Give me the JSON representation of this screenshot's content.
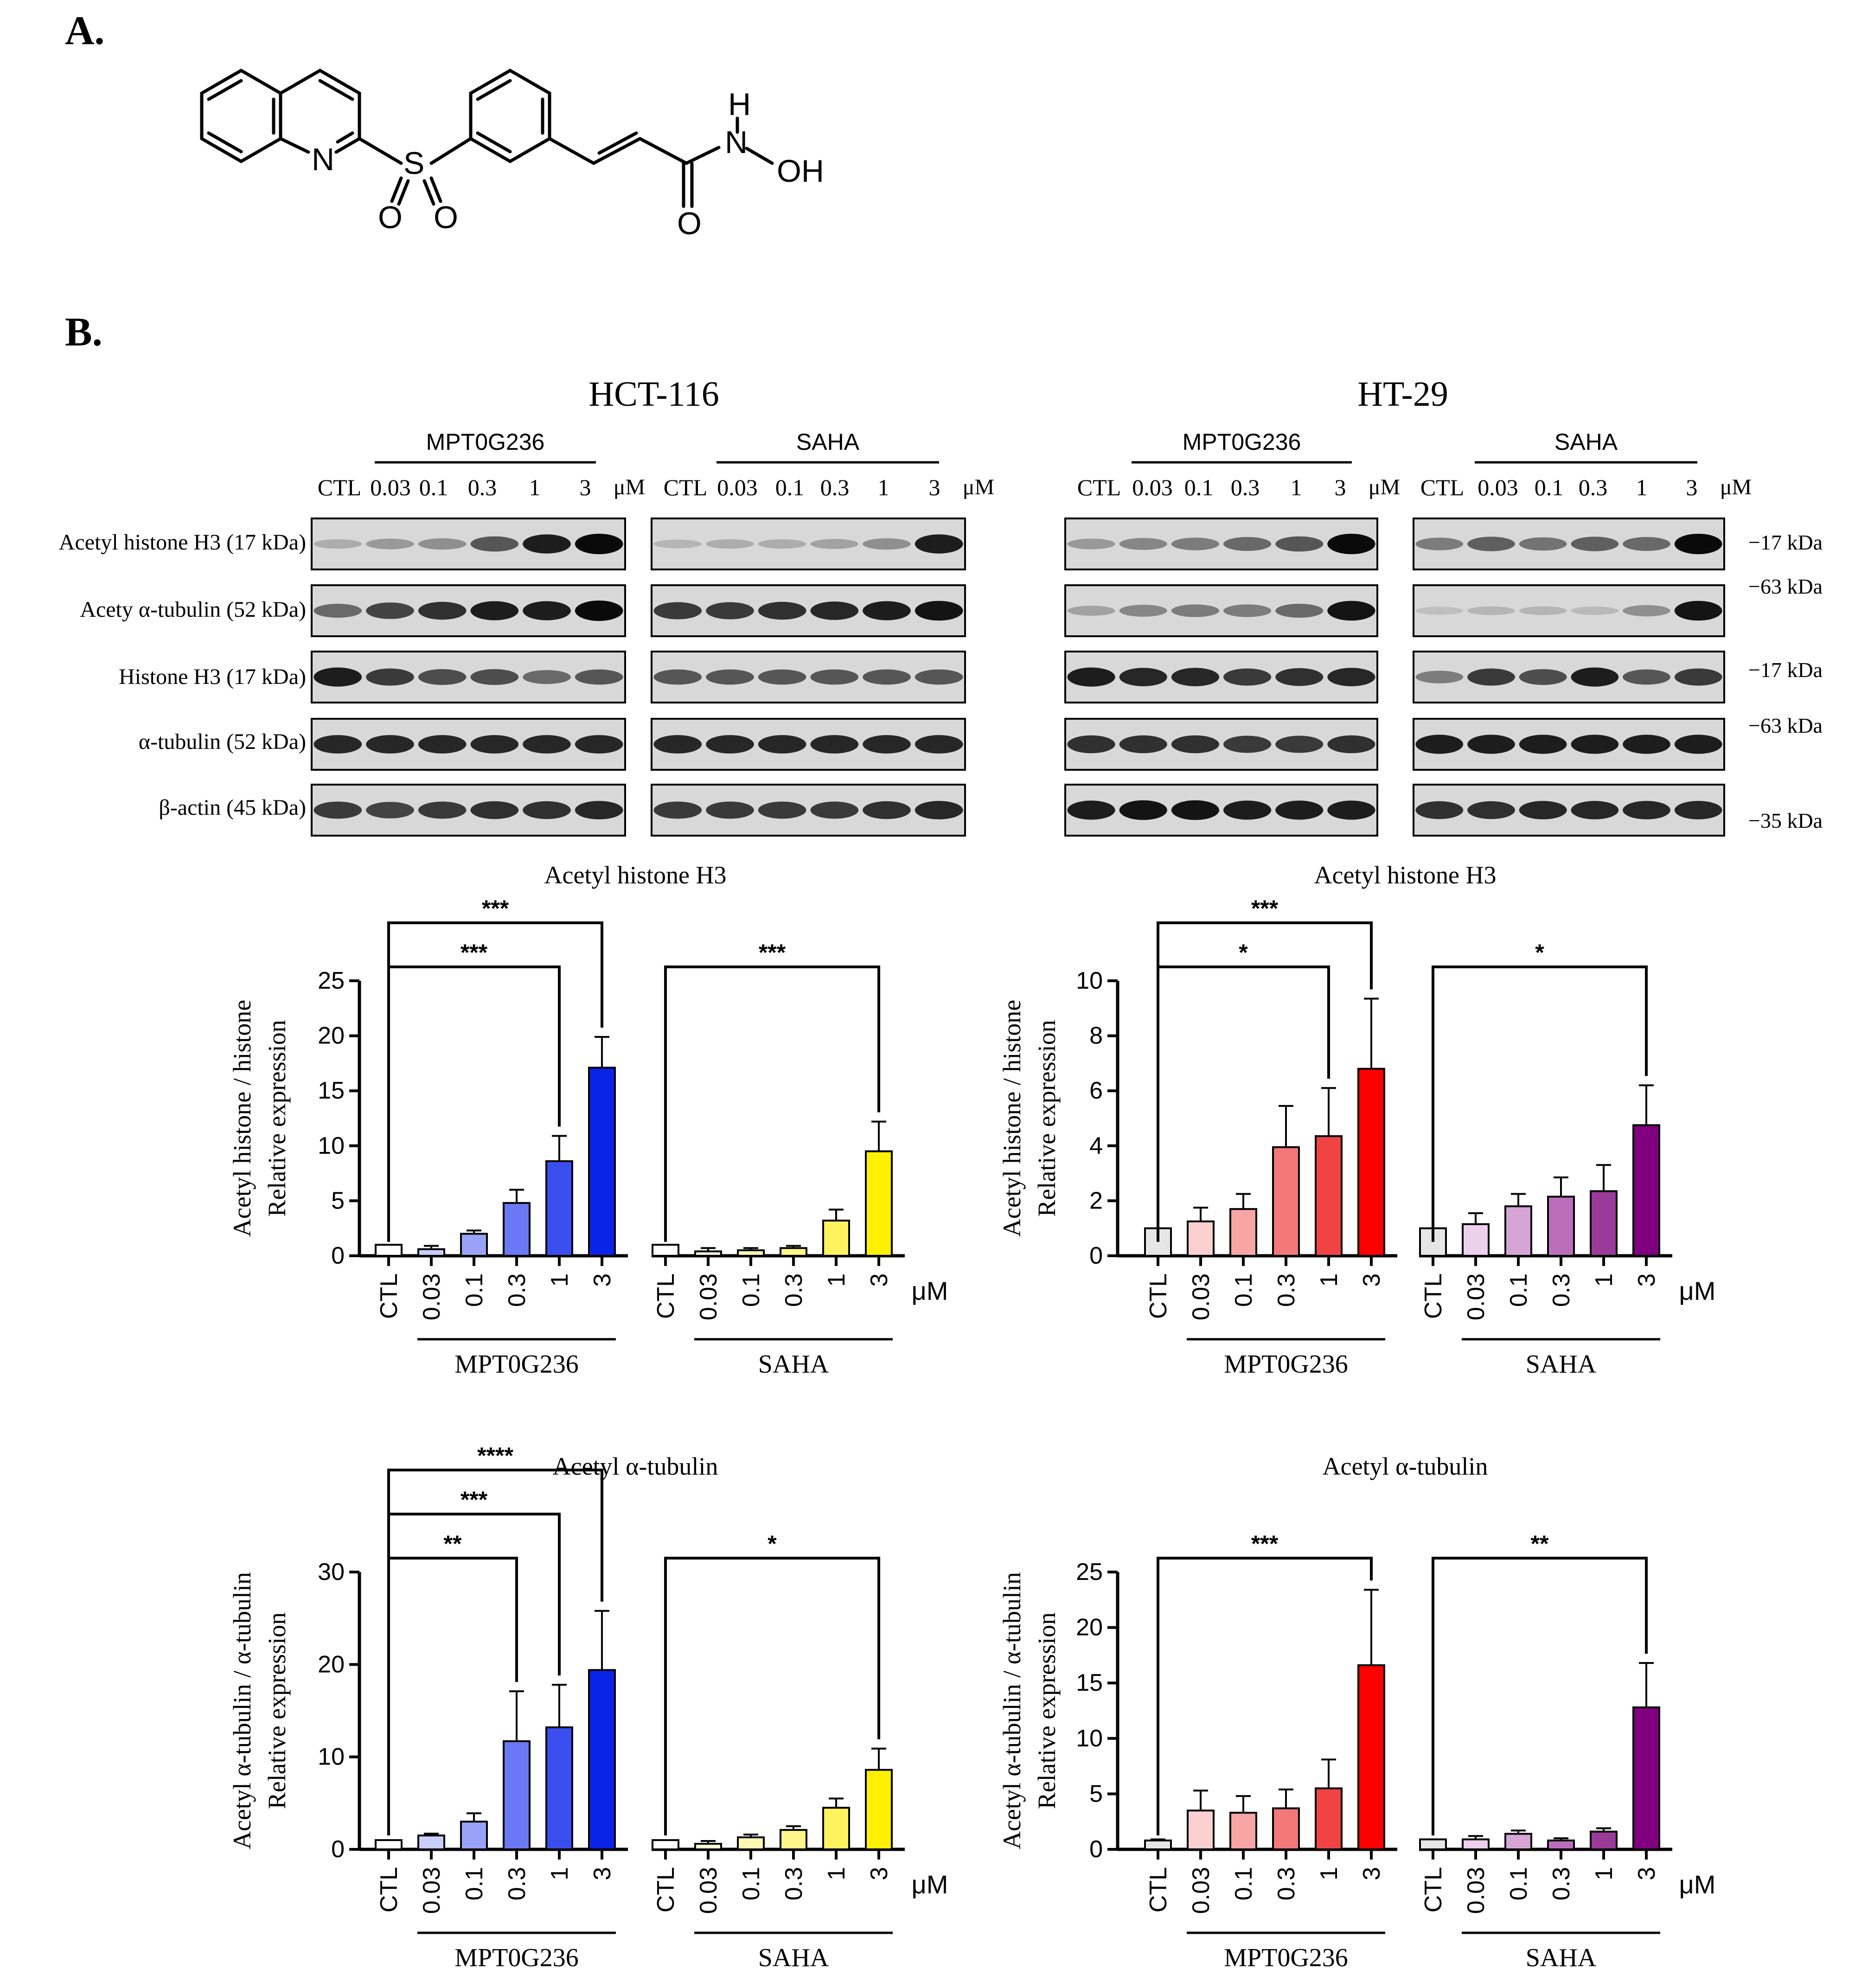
{
  "panel_a": {
    "label": "A.",
    "atoms": {
      "N": "N",
      "S": "S",
      "O1": "O",
      "O2": "O",
      "O3": "O",
      "H": "H",
      "NH": "N",
      "OH": "OH"
    }
  },
  "panel_b": {
    "label": "B.",
    "cell_lines": [
      "HCT-116",
      "HT-29"
    ],
    "groups": [
      "MPT0G236",
      "SAHA"
    ],
    "lanes": [
      "CTL",
      "0.03",
      "0.1",
      "0.3",
      "1",
      "3"
    ],
    "unit": "μM",
    "blot_rows": [
      "Acetyl histone H3 (17 kDa)",
      "Acety α-tubulin (52 kDa)",
      "Histone H3 (17 kDa)",
      "α-tubulin (52 kDa)",
      "β-actin (45 kDa)"
    ],
    "markers": [
      "−17 kDa",
      "−63 kDa",
      "−17 kDa",
      "−63 kDa",
      "−35 kDa"
    ]
  },
  "chart_data": [
    {
      "type": "bar",
      "title": "Acetyl histone H3",
      "cell_line": "HCT-116",
      "ylabel": [
        "Acetyl histone / histone",
        "Relative expression"
      ],
      "ylim": [
        0,
        25
      ],
      "yticks": [
        0,
        5,
        10,
        15,
        20,
        25
      ],
      "categories": [
        "CTL",
        "0.03",
        "0.1",
        "0.3",
        "1",
        "3"
      ],
      "unit": "μM",
      "series": [
        {
          "name": "MPT0G236",
          "values": [
            1,
            0.6,
            2.0,
            4.8,
            8.6,
            17.1
          ],
          "errors": [
            0,
            0.3,
            0.3,
            1.2,
            2.3,
            2.8
          ],
          "colors": [
            "#ffffff",
            "#c9cdfa",
            "#9aa2f7",
            "#6b78f4",
            "#3a4ef0",
            "#0a23e8"
          ]
        },
        {
          "name": "SAHA",
          "values": [
            1,
            0.4,
            0.5,
            0.7,
            3.2,
            9.5
          ],
          "errors": [
            0,
            0.3,
            0.2,
            0.2,
            1.0,
            2.7
          ],
          "colors": [
            "#ffffff",
            "#fffbd8",
            "#fff8b2",
            "#fff58a",
            "#fff25f",
            "#ffef00"
          ]
        }
      ],
      "significance": [
        {
          "group": 0,
          "to": 4,
          "label": "***"
        },
        {
          "group": 0,
          "to": 5,
          "label": "***"
        },
        {
          "group": 1,
          "to": 5,
          "label": "***"
        }
      ]
    },
    {
      "type": "bar",
      "title": "Acetyl histone H3",
      "cell_line": "HT-29",
      "ylabel": [
        "Acetyl histone / histone",
        "Relative expression"
      ],
      "ylim": [
        0,
        10
      ],
      "yticks": [
        0,
        2,
        4,
        6,
        8,
        10
      ],
      "categories": [
        "CTL",
        "0.03",
        "0.1",
        "0.3",
        "1",
        "3"
      ],
      "unit": "μM",
      "series": [
        {
          "name": "MPT0G236",
          "values": [
            1,
            1.25,
            1.7,
            3.95,
            4.35,
            6.8
          ],
          "errors": [
            0,
            0.5,
            0.55,
            1.5,
            1.75,
            2.55
          ],
          "colors": [
            "#e6e6e6",
            "#fbd0d0",
            "#f7a5a5",
            "#f37878",
            "#f04343",
            "#ff0000"
          ]
        },
        {
          "name": "SAHA",
          "values": [
            1,
            1.15,
            1.8,
            2.15,
            2.35,
            4.75
          ],
          "errors": [
            0,
            0.4,
            0.45,
            0.7,
            0.95,
            1.45
          ],
          "colors": [
            "#e6e6e6",
            "#ecd0ec",
            "#d6a5d6",
            "#bb6fbb",
            "#9a3b9a",
            "#800080"
          ]
        }
      ],
      "significance": [
        {
          "group": 0,
          "to": 4,
          "label": "*"
        },
        {
          "group": 0,
          "to": 5,
          "label": "***"
        },
        {
          "group": 1,
          "to": 5,
          "label": "*"
        }
      ]
    },
    {
      "type": "bar",
      "title": "Acetyl α-tubulin",
      "cell_line": "HCT-116",
      "ylabel": [
        "Acetyl α-tubulin / α-tubulin",
        "Relative expression"
      ],
      "ylim": [
        0,
        30
      ],
      "yticks": [
        0,
        10,
        20,
        30
      ],
      "categories": [
        "CTL",
        "0.03",
        "0.1",
        "0.3",
        "1",
        "3"
      ],
      "unit": "μM",
      "series": [
        {
          "name": "MPT0G236",
          "values": [
            1,
            1.5,
            3.0,
            11.7,
            13.2,
            19.4
          ],
          "errors": [
            0,
            0.2,
            0.9,
            5.4,
            4.6,
            6.4
          ],
          "colors": [
            "#ffffff",
            "#c9cdfa",
            "#9aa2f7",
            "#6b78f4",
            "#3a4ef0",
            "#0a23e8"
          ]
        },
        {
          "name": "SAHA",
          "values": [
            1,
            0.6,
            1.3,
            2.1,
            4.5,
            8.6
          ],
          "errors": [
            0,
            0.3,
            0.3,
            0.4,
            1.0,
            2.3
          ],
          "colors": [
            "#ffffff",
            "#fffbd8",
            "#fff8b2",
            "#fff58a",
            "#fff25f",
            "#ffef00"
          ]
        }
      ],
      "significance": [
        {
          "group": 0,
          "to": 3,
          "label": "**"
        },
        {
          "group": 0,
          "to": 4,
          "label": "***"
        },
        {
          "group": 0,
          "to": 5,
          "label": "****"
        },
        {
          "group": 1,
          "to": 5,
          "label": "*"
        }
      ]
    },
    {
      "type": "bar",
      "title": "Acetyl α-tubulin",
      "cell_line": "HT-29",
      "ylabel": [
        "Acetyl α-tubulin / α-tubulin",
        "Relative expression"
      ],
      "ylim": [
        0,
        25
      ],
      "yticks": [
        0,
        5,
        10,
        15,
        20,
        25
      ],
      "categories": [
        "CTL",
        "0.03",
        "0.1",
        "0.3",
        "1",
        "3"
      ],
      "unit": "μM",
      "series": [
        {
          "name": "MPT0G236",
          "values": [
            0.8,
            3.5,
            3.3,
            3.7,
            5.5,
            16.6
          ],
          "errors": [
            0.1,
            1.8,
            1.5,
            1.7,
            2.6,
            6.8
          ],
          "colors": [
            "#e6e6e6",
            "#fbd0d0",
            "#f7a5a5",
            "#f37878",
            "#f04343",
            "#ff0000"
          ]
        },
        {
          "name": "SAHA",
          "values": [
            0.9,
            0.9,
            1.4,
            0.8,
            1.6,
            12.8
          ],
          "errors": [
            0,
            0.3,
            0.3,
            0.2,
            0.3,
            4.0
          ],
          "colors": [
            "#e6e6e6",
            "#ecd0ec",
            "#d6a5d6",
            "#bb6fbb",
            "#9a3b9a",
            "#800080"
          ]
        }
      ],
      "significance": [
        {
          "group": 0,
          "to": 5,
          "label": "***"
        },
        {
          "group": 1,
          "to": 5,
          "label": "**"
        }
      ]
    }
  ],
  "blot_intensity": {
    "HCT-116": {
      "MPT0G236": [
        [
          0.15,
          0.25,
          0.3,
          0.6,
          0.9,
          1.0
        ],
        [
          0.5,
          0.7,
          0.8,
          0.9,
          0.9,
          1.0
        ],
        [
          0.9,
          0.75,
          0.65,
          0.65,
          0.5,
          0.6
        ],
        [
          0.85,
          0.85,
          0.85,
          0.85,
          0.85,
          0.85
        ],
        [
          0.75,
          0.7,
          0.75,
          0.8,
          0.8,
          0.85
        ]
      ],
      "SAHA": [
        [
          0.1,
          0.15,
          0.15,
          0.2,
          0.3,
          0.9
        ],
        [
          0.75,
          0.75,
          0.8,
          0.85,
          0.9,
          0.95
        ],
        [
          0.6,
          0.6,
          0.6,
          0.6,
          0.6,
          0.6
        ],
        [
          0.85,
          0.85,
          0.85,
          0.85,
          0.85,
          0.85
        ],
        [
          0.75,
          0.75,
          0.75,
          0.75,
          0.8,
          0.85
        ]
      ]
    },
    "HT-29": {
      "MPT0G236": [
        [
          0.25,
          0.35,
          0.4,
          0.5,
          0.6,
          1.0
        ],
        [
          0.2,
          0.35,
          0.4,
          0.4,
          0.5,
          0.95
        ],
        [
          0.9,
          0.85,
          0.85,
          0.75,
          0.8,
          0.85
        ],
        [
          0.8,
          0.8,
          0.8,
          0.75,
          0.75,
          0.8
        ],
        [
          0.9,
          0.95,
          0.95,
          0.9,
          0.9,
          0.9
        ]
      ],
      "SAHA": [
        [
          0.4,
          0.55,
          0.45,
          0.55,
          0.5,
          1.0
        ],
        [
          0.05,
          0.1,
          0.1,
          0.08,
          0.3,
          0.95
        ],
        [
          0.4,
          0.75,
          0.65,
          0.9,
          0.6,
          0.75
        ],
        [
          0.9,
          0.9,
          0.9,
          0.9,
          0.9,
          0.9
        ],
        [
          0.8,
          0.8,
          0.85,
          0.85,
          0.85,
          0.85
        ]
      ]
    }
  }
}
